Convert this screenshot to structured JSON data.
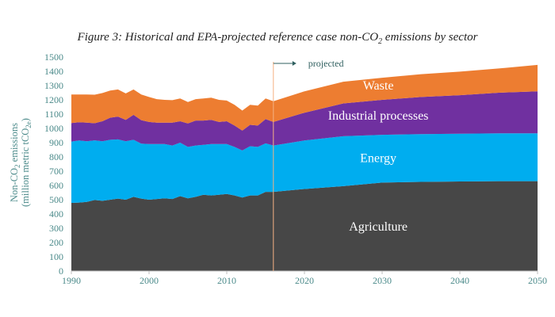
{
  "chart_data": {
    "type": "area",
    "stacked": true,
    "title_prefix": "Figure 3: Historical and EPA-projected reference case non-CO",
    "title_sub": "2",
    "title_suffix": " emissions by sector",
    "ylabel_line1": "Non-CO",
    "ylabel_line1_sub": "2",
    "ylabel_line1_end": " emissions",
    "ylabel_line2": "(million metric tCO",
    "ylabel_line2_sub": "2e",
    "ylabel_line2_end": ")",
    "xlim": [
      1990,
      2050
    ],
    "ylim": [
      0,
      1500
    ],
    "x_ticks": [
      "1990",
      "2000",
      "2010",
      "2020",
      "2030",
      "2040",
      "2050"
    ],
    "y_ticks": [
      "0",
      "100",
      "200",
      "300",
      "400",
      "500",
      "600",
      "700",
      "800",
      "900",
      "1000",
      "1100",
      "1200",
      "1300",
      "1400",
      "1500"
    ],
    "projection_start": 2016,
    "projection_label": "projected",
    "x": [
      1990,
      1991,
      1992,
      1993,
      1994,
      1995,
      1996,
      1997,
      1998,
      1999,
      2000,
      2001,
      2002,
      2003,
      2004,
      2005,
      2006,
      2007,
      2008,
      2009,
      2010,
      2011,
      2012,
      2013,
      2014,
      2015,
      2016,
      2020,
      2025,
      2030,
      2035,
      2040,
      2045,
      2050
    ],
    "series": [
      {
        "name": "Agriculture",
        "color": "#474747",
        "values": [
          478,
          480,
          485,
          498,
          492,
          500,
          508,
          500,
          520,
          508,
          500,
          505,
          510,
          505,
          525,
          510,
          520,
          535,
          530,
          535,
          540,
          530,
          515,
          530,
          530,
          555,
          555,
          575,
          595,
          620,
          625,
          628,
          630,
          630
        ]
      },
      {
        "name": "Energy",
        "color": "#00adef",
        "values": [
          430,
          435,
          425,
          418,
          418,
          420,
          415,
          410,
          400,
          385,
          390,
          385,
          380,
          375,
          375,
          360,
          360,
          350,
          360,
          355,
          350,
          340,
          330,
          345,
          340,
          340,
          325,
          340,
          350,
          335,
          335,
          335,
          335,
          335
        ]
      },
      {
        "name": "Industrial processes",
        "color": "#7030a0",
        "values": [
          130,
          128,
          130,
          120,
          140,
          155,
          160,
          150,
          175,
          165,
          155,
          150,
          150,
          160,
          150,
          165,
          175,
          170,
          170,
          155,
          160,
          150,
          140,
          150,
          150,
          170,
          165,
          195,
          230,
          245,
          260,
          270,
          285,
          295
        ]
      },
      {
        "name": "Waste",
        "color": "#ed7d31",
        "values": [
          200,
          195,
          198,
          200,
          198,
          190,
          190,
          185,
          178,
          180,
          175,
          165,
          160,
          158,
          160,
          150,
          150,
          155,
          155,
          155,
          145,
          145,
          140,
          140,
          140,
          145,
          145,
          150,
          152,
          155,
          160,
          165,
          170,
          185
        ]
      }
    ]
  }
}
